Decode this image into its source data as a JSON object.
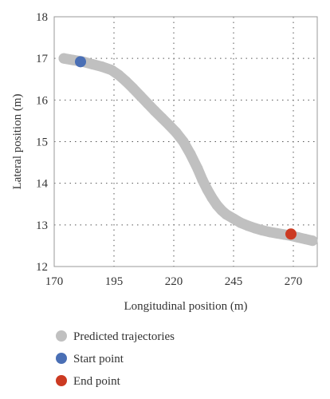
{
  "chart_data": {
    "type": "scatter",
    "xlabel": "Longitudinal position (m)",
    "ylabel": "Lateral position (m)",
    "xlim": [
      170,
      280
    ],
    "ylim": [
      12,
      18
    ],
    "xticks": [
      170,
      195,
      220,
      245,
      270
    ],
    "yticks": [
      12,
      13,
      14,
      15,
      16,
      17,
      18
    ],
    "xtick_labels": [
      "170",
      "195",
      "220",
      "245",
      "270"
    ],
    "ytick_labels": [
      "12",
      "13",
      "14",
      "15",
      "16",
      "17",
      "18"
    ],
    "grid": "dotted",
    "legend_position": "bottom",
    "series": [
      {
        "name": "Predicted trajectories",
        "color": "#c0c0c0",
        "x": [
          174,
          178,
          182,
          186,
          190,
          194,
          197,
          200,
          203,
          206,
          209,
          212,
          215,
          218,
          221,
          224,
          227,
          230,
          232,
          234,
          236,
          238,
          240,
          242,
          245,
          248,
          251,
          254,
          257,
          260,
          263,
          266,
          269,
          272,
          275,
          278
        ],
        "y": [
          17.0,
          16.96,
          16.92,
          16.86,
          16.8,
          16.72,
          16.6,
          16.45,
          16.28,
          16.1,
          15.92,
          15.74,
          15.57,
          15.4,
          15.22,
          15.0,
          14.7,
          14.35,
          14.08,
          13.85,
          13.65,
          13.48,
          13.35,
          13.25,
          13.15,
          13.05,
          12.98,
          12.92,
          12.87,
          12.83,
          12.8,
          12.77,
          12.74,
          12.7,
          12.66,
          12.62
        ]
      },
      {
        "name": "Start point",
        "color": "#4a6fb5",
        "x": [
          181
        ],
        "y": [
          16.92
        ]
      },
      {
        "name": "End point",
        "color": "#cc3a22",
        "x": [
          269
        ],
        "y": [
          12.78
        ]
      }
    ]
  }
}
